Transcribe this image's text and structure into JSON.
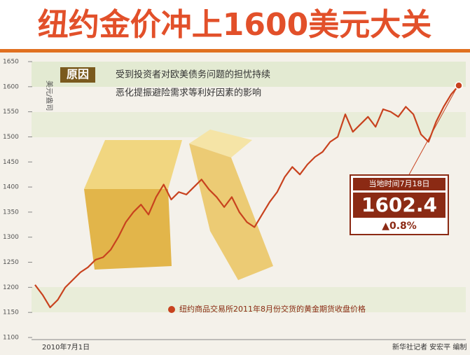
{
  "chart_data": {
    "type": "line",
    "title": "纽约金价冲上1600美元大关",
    "y_label": "美元/盎司",
    "reason_label": "原因",
    "reason_text": [
      "受到投资者对欧美债务问题的担忧持续",
      "恶化提振避险需求等利好因素的影响"
    ],
    "callout_date": "当地时间7月18日",
    "callout_value": "1602.4",
    "callout_change": "▲0.8%",
    "source": "新华社记者 安宏平 编制",
    "categories": [
      "2010年7月1日",
      null,
      null,
      null,
      null,
      null,
      null,
      null,
      null,
      null,
      null,
      null,
      null,
      null,
      null,
      null,
      null,
      null,
      null,
      null,
      null,
      null,
      null,
      null,
      null,
      null,
      null,
      null,
      null,
      null,
      null,
      null,
      null,
      null,
      null,
      null,
      null,
      null,
      null,
      null,
      null,
      null,
      null,
      null,
      null,
      null,
      null,
      null,
      null,
      null,
      null,
      null,
      null,
      null,
      null,
      null,
      null
    ],
    "series": [
      {
        "name": "纽约商品交易所2011年8月份交货的黄金期货收盘价格",
        "color": "#c8421e",
        "values": [
          1205,
          1185,
          1160,
          1175,
          1200,
          1215,
          1230,
          1240,
          1255,
          1260,
          1275,
          1300,
          1330,
          1350,
          1365,
          1345,
          1380,
          1405,
          1375,
          1390,
          1385,
          1400,
          1415,
          1395,
          1380,
          1360,
          1380,
          1350,
          1330,
          1320,
          1345,
          1370,
          1390,
          1420,
          1440,
          1425,
          1445,
          1460,
          1470,
          1490,
          1500,
          1545,
          1510,
          1525,
          1540,
          1520,
          1555,
          1550,
          1540,
          1560,
          1545,
          1505,
          1490,
          1530,
          1560,
          1585,
          1602.4
        ]
      }
    ],
    "ylim": [
      1100,
      1650
    ],
    "yticks": [
      1100,
      1150,
      1200,
      1250,
      1300,
      1350,
      1400,
      1450,
      1500,
      1550,
      1600,
      1650
    ]
  }
}
